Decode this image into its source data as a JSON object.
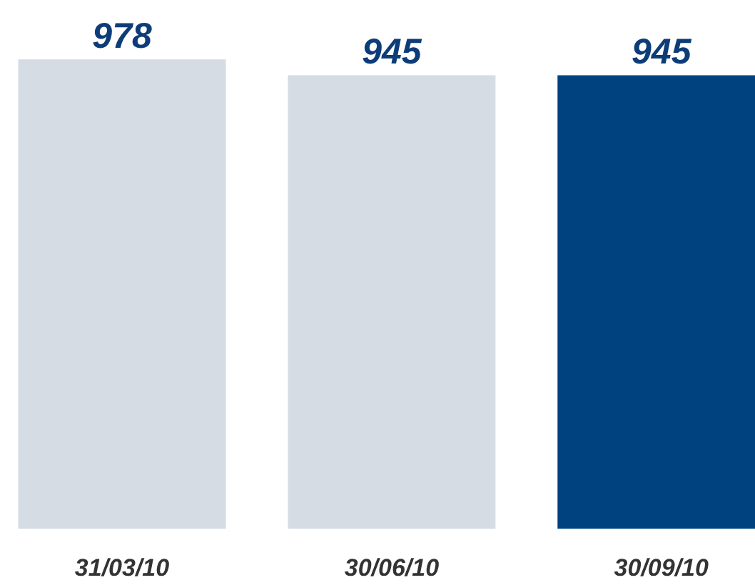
{
  "chart_data": {
    "type": "bar",
    "categories": [
      "31/03/10",
      "30/06/10",
      "30/09/10"
    ],
    "values": [
      978,
      945,
      945
    ],
    "colors": [
      "#d5dce4",
      "#d5dce4",
      "#00427f"
    ],
    "data_labels": true,
    "tick_labels": "x",
    "grid": false
  }
}
